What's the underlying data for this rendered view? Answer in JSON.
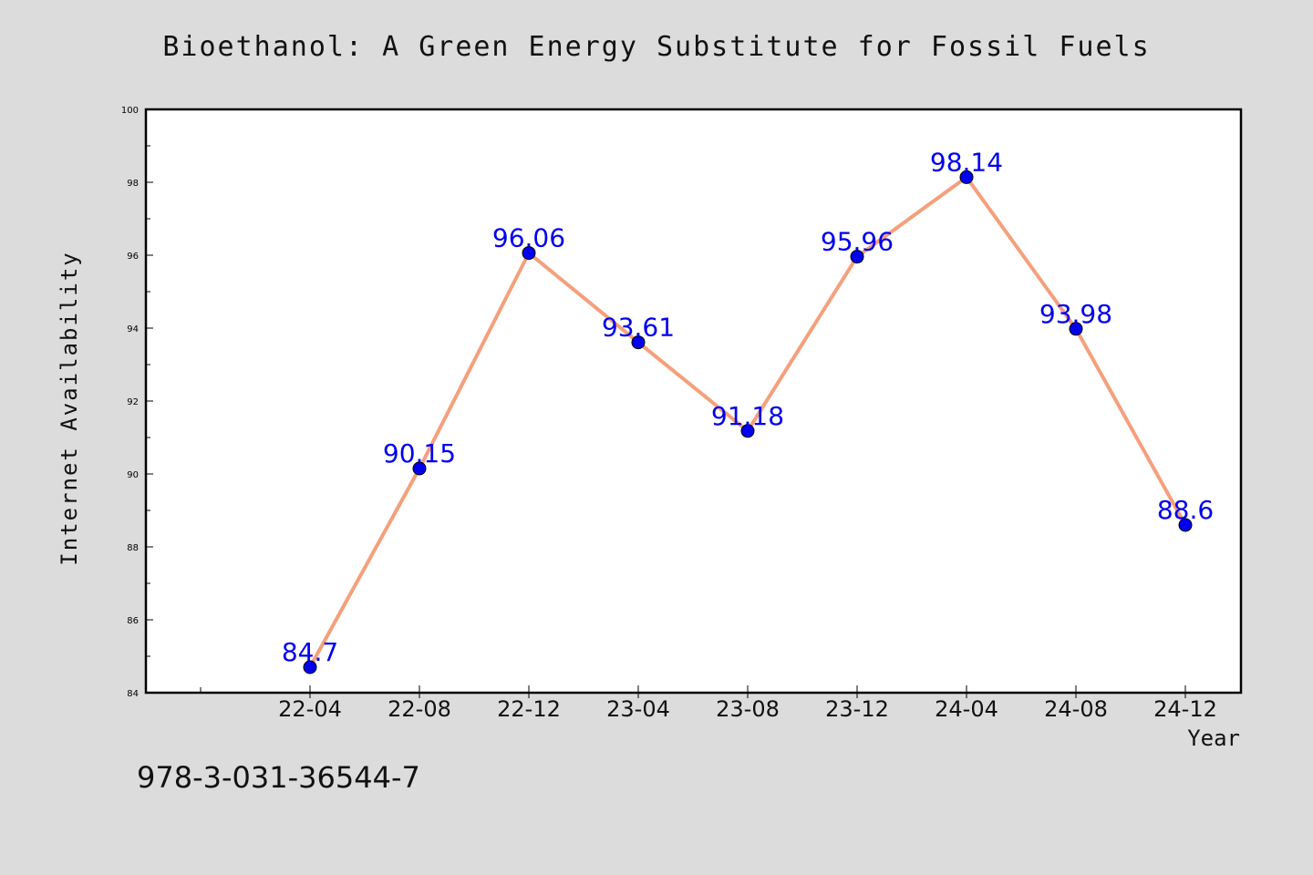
{
  "chart_data": {
    "type": "line",
    "title": "Bioethanol: A Green Energy Substitute for Fossil Fuels",
    "xlabel": "Year",
    "ylabel": "Internet Availability",
    "categories": [
      "22-04",
      "22-08",
      "22-12",
      "23-04",
      "23-08",
      "23-12",
      "24-04",
      "24-08",
      "24-12"
    ],
    "values": [
      84.7,
      90.15,
      96.06,
      93.61,
      91.18,
      95.96,
      98.14,
      93.98,
      88.6
    ],
    "point_labels": [
      "84.7",
      "90.15",
      "96.06",
      "93.61",
      "91.18",
      "95.96",
      "98.14",
      "93.98",
      "88.6"
    ],
    "ylim": [
      84,
      100
    ],
    "yticks": [
      84,
      86,
      88,
      90,
      92,
      94,
      96,
      98,
      100
    ],
    "ytick_labels": [
      "84",
      "86",
      "88",
      "90",
      "92",
      "94",
      "96",
      "98",
      "100"
    ],
    "grid": false,
    "line_color": "#f5a07c",
    "marker_color": "#0000ee",
    "label_color": "#0000ee"
  },
  "footer": {
    "isbn": "978-3-031-36544-7"
  }
}
